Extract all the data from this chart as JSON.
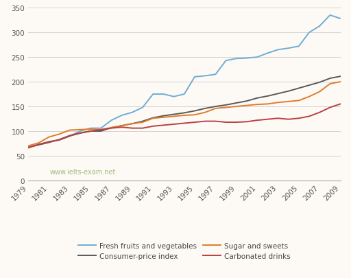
{
  "years": [
    1979,
    1980,
    1981,
    1982,
    1983,
    1984,
    1985,
    1986,
    1987,
    1988,
    1989,
    1990,
    1991,
    1992,
    1993,
    1994,
    1995,
    1996,
    1997,
    1998,
    1999,
    2000,
    2001,
    2002,
    2003,
    2004,
    2005,
    2006,
    2007,
    2008,
    2009
  ],
  "fresh_fruits_veg": [
    67,
    73,
    79,
    82,
    90,
    100,
    106,
    106,
    122,
    132,
    138,
    148,
    175,
    175,
    170,
    175,
    210,
    212,
    215,
    243,
    247,
    248,
    250,
    258,
    265,
    268,
    272,
    300,
    313,
    335,
    328
  ],
  "consumer_price_index": [
    67,
    72,
    77,
    83,
    91,
    96,
    100,
    100,
    107,
    111,
    115,
    120,
    127,
    131,
    134,
    137,
    141,
    146,
    150,
    153,
    157,
    161,
    167,
    171,
    176,
    181,
    187,
    193,
    199,
    207,
    211
  ],
  "sugar_and_sweets": [
    70,
    76,
    88,
    94,
    102,
    103,
    104,
    103,
    107,
    111,
    115,
    118,
    126,
    128,
    130,
    132,
    133,
    138,
    146,
    148,
    150,
    152,
    154,
    155,
    158,
    160,
    162,
    170,
    180,
    196,
    200
  ],
  "carbonated_drinks": [
    66,
    73,
    78,
    82,
    90,
    96,
    100,
    103,
    106,
    108,
    106,
    106,
    110,
    112,
    114,
    116,
    118,
    120,
    120,
    118,
    118,
    119,
    122,
    124,
    126,
    124,
    126,
    130,
    138,
    148,
    155
  ],
  "fresh_color": "#6eadd4",
  "cpi_color": "#5a5a5a",
  "sugar_color": "#e07b2a",
  "carbonated_color": "#b94040",
  "watermark": "www.ielts-exam.net",
  "watermark_color": "#8ab56a",
  "ylim": [
    0,
    350
  ],
  "yticks": [
    0,
    50,
    100,
    150,
    200,
    250,
    300,
    350
  ],
  "xtick_labels": [
    "1979",
    "1981",
    "1983",
    "1985",
    "1987",
    "1989",
    "1991",
    "1993",
    "1995",
    "1997",
    "1999",
    "2001",
    "2003",
    "2005",
    "2007",
    "2009"
  ],
  "legend_entries": [
    "Fresh fruits and vegetables",
    "Consumer-price index",
    "Sugar and sweets",
    "Carbonated drinks"
  ],
  "grid_color": "#cccccc",
  "background_color": "#fdf9f5",
  "line_width": 1.4
}
